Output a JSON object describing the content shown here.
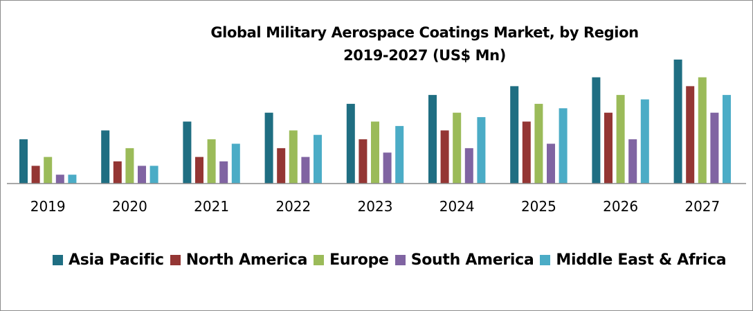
{
  "chart_data": {
    "type": "bar",
    "title": "Global Military Aerospace Coatings Market, by Region",
    "subtitle": "2019-2027 (US$ Mn)",
    "xlabel": "",
    "ylabel": "",
    "y_axis_visible": false,
    "grid": false,
    "legend_position": "bottom",
    "categories": [
      "2019",
      "2020",
      "2021",
      "2022",
      "2023",
      "2024",
      "2025",
      "2026",
      "2027"
    ],
    "ylim": [
      0,
      14
    ],
    "value_note": "No value axis shown; values are relative bar heights estimated in equal steps",
    "series": [
      {
        "name": "Asia Pacific",
        "color": "#1f6e82",
        "values": [
          5,
          6,
          7,
          8,
          9,
          10,
          11,
          12,
          14
        ]
      },
      {
        "name": "North America",
        "color": "#943634",
        "values": [
          2,
          2.5,
          3,
          4,
          5,
          6,
          7,
          8,
          11
        ]
      },
      {
        "name": "Europe",
        "color": "#9bbb59",
        "values": [
          3,
          4,
          5,
          6,
          7,
          8,
          9,
          10,
          12
        ]
      },
      {
        "name": "South America",
        "color": "#8064a2",
        "values": [
          1,
          2,
          2.5,
          3,
          3.5,
          4,
          4.5,
          5,
          8
        ]
      },
      {
        "name": "Middle East & Africa",
        "color": "#4bacc6",
        "values": [
          1,
          2,
          4.5,
          5.5,
          6.5,
          7.5,
          8.5,
          9.5,
          10
        ]
      }
    ]
  }
}
